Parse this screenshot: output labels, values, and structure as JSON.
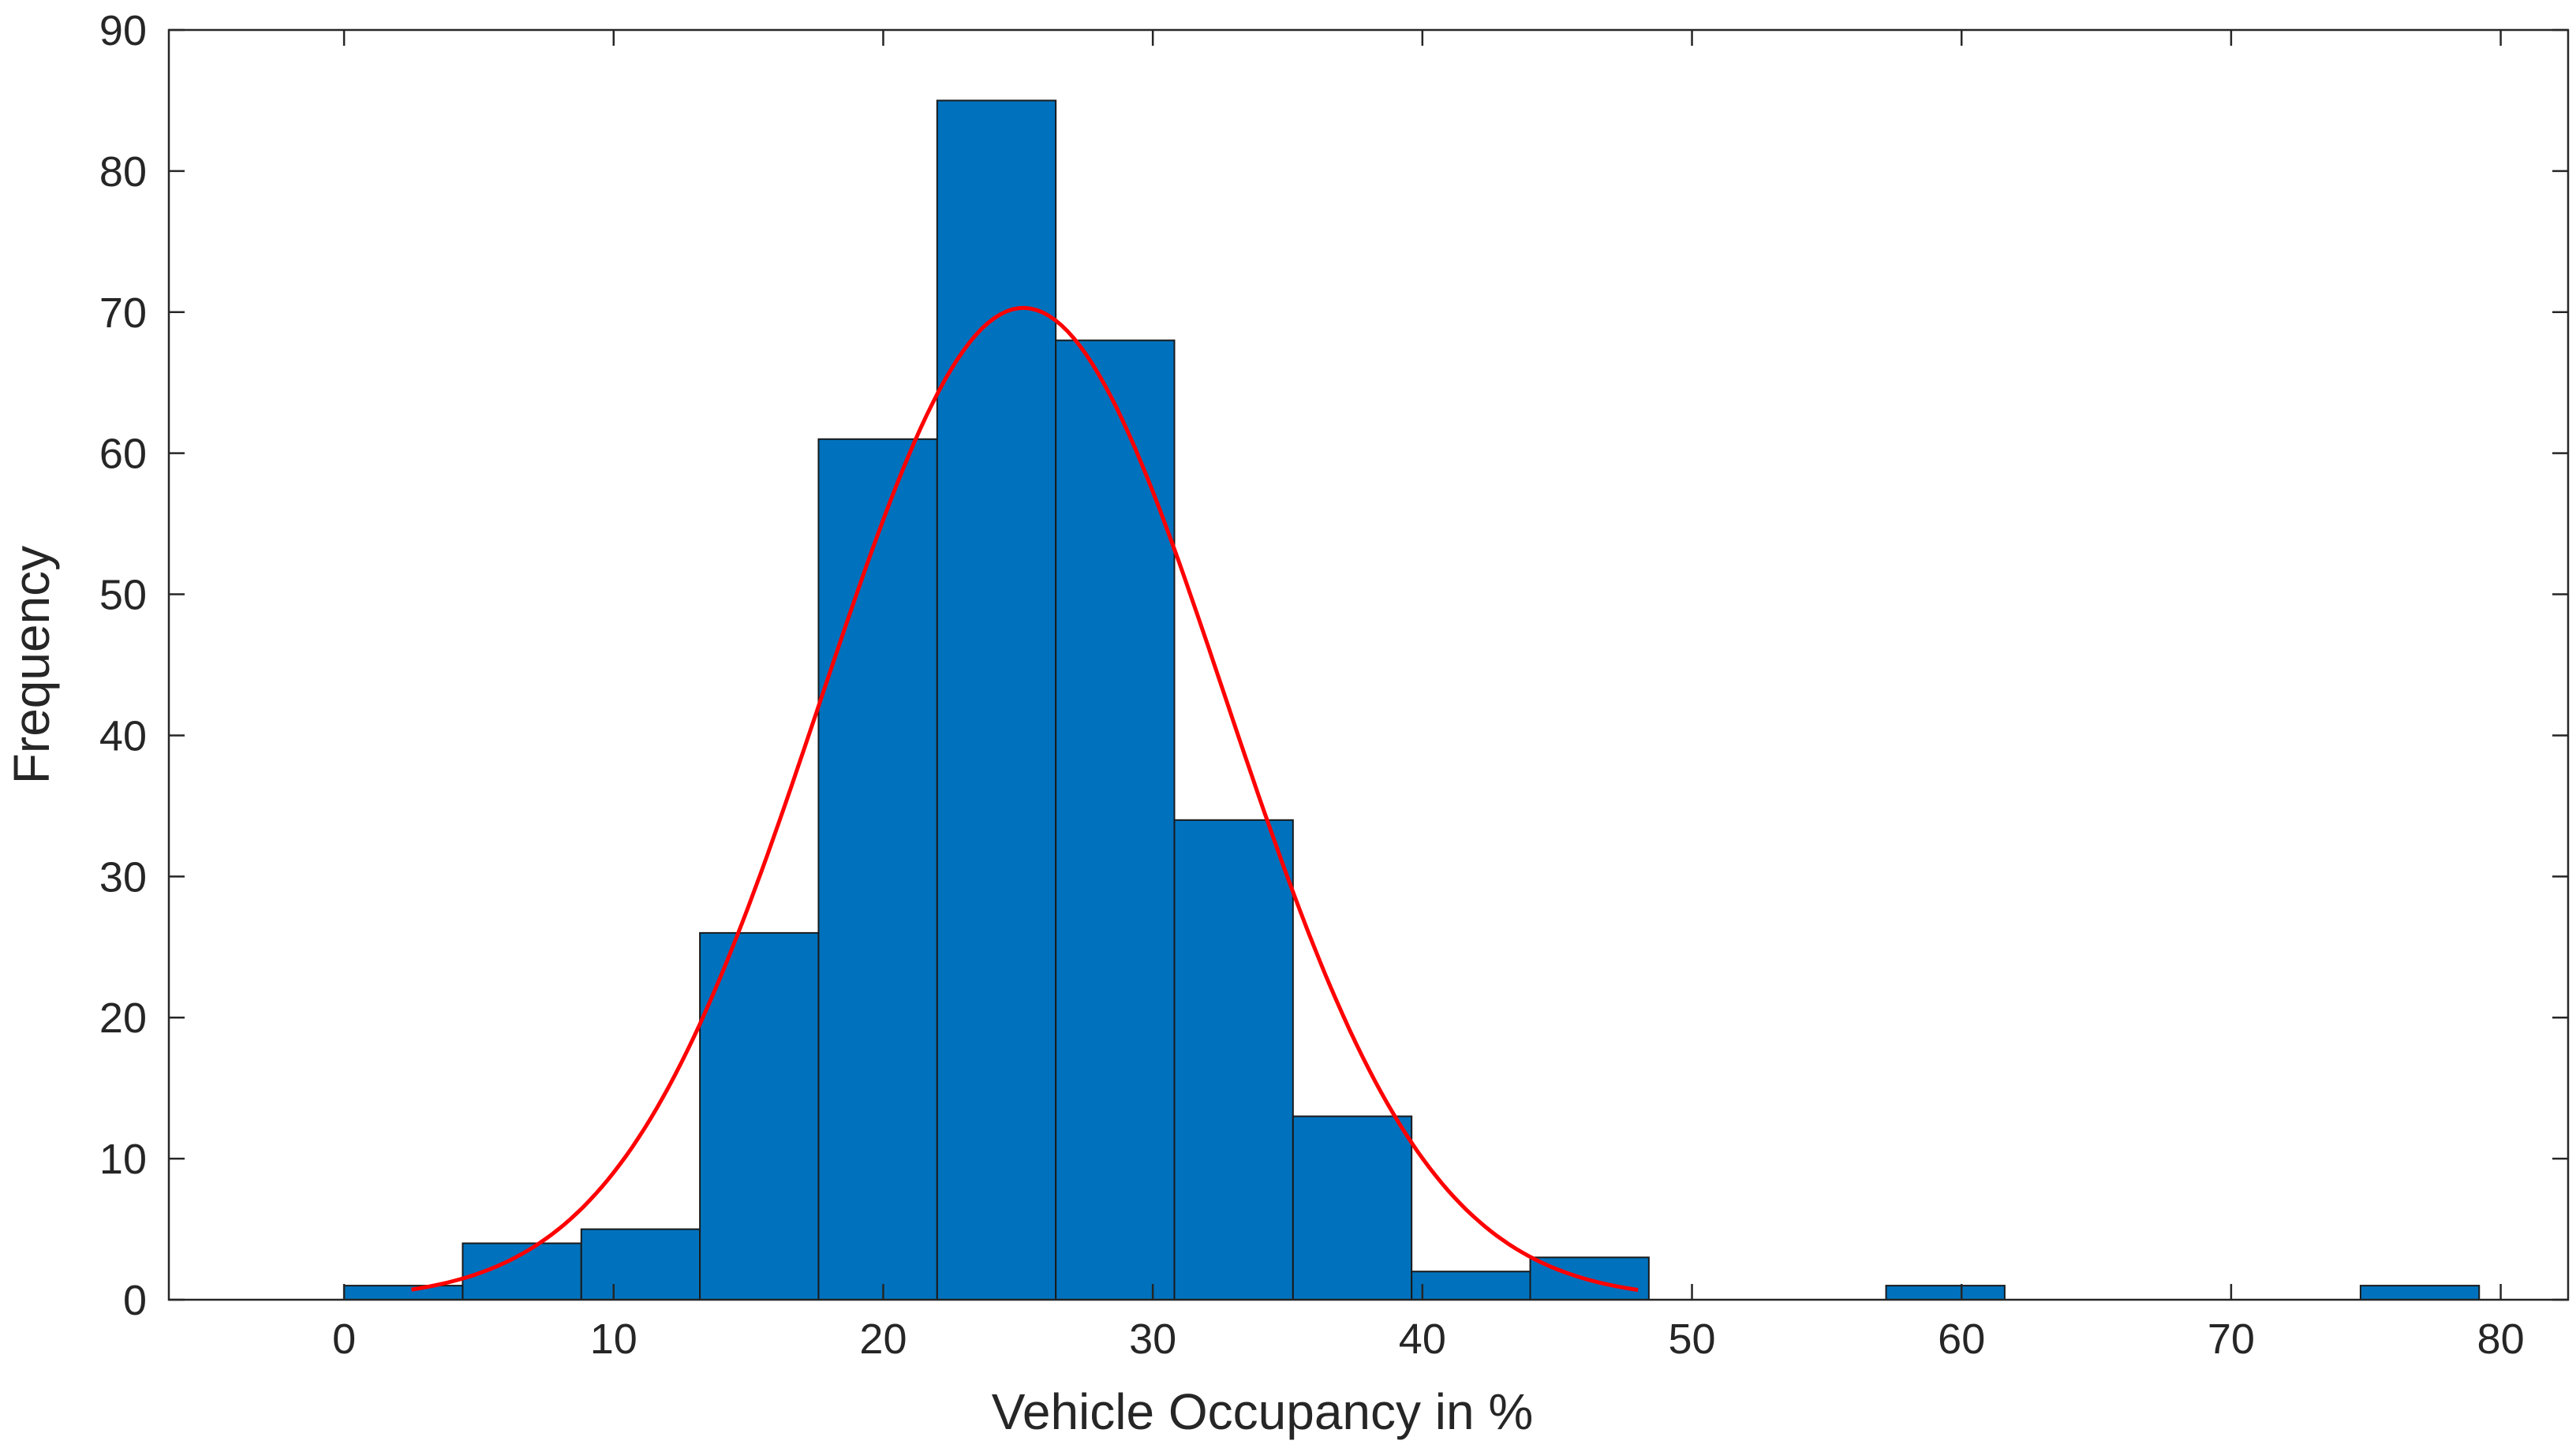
{
  "chart_data": {
    "type": "bar",
    "subtype": "histogram",
    "title": "",
    "xlabel": "Vehicle Occupancy in %",
    "ylabel": "Frequency",
    "xlim": [
      -6.5,
      82.5
    ],
    "ylim": [
      0,
      90
    ],
    "xticks": [
      0,
      10,
      20,
      30,
      40,
      50,
      60,
      70,
      80
    ],
    "yticks": [
      0,
      10,
      20,
      30,
      40,
      50,
      60,
      70,
      80,
      90
    ],
    "grid": false,
    "bins": [
      {
        "x0": 0.0,
        "x1": 4.4,
        "count": 1
      },
      {
        "x0": 4.4,
        "x1": 8.8,
        "count": 4
      },
      {
        "x0": 8.8,
        "x1": 13.2,
        "count": 5
      },
      {
        "x0": 13.2,
        "x1": 17.6,
        "count": 26
      },
      {
        "x0": 17.6,
        "x1": 22.0,
        "count": 61
      },
      {
        "x0": 22.0,
        "x1": 26.4,
        "count": 85
      },
      {
        "x0": 26.4,
        "x1": 30.8,
        "count": 68
      },
      {
        "x0": 30.8,
        "x1": 35.2,
        "count": 34
      },
      {
        "x0": 35.2,
        "x1": 39.6,
        "count": 13
      },
      {
        "x0": 39.6,
        "x1": 44.0,
        "count": 2
      },
      {
        "x0": 44.0,
        "x1": 48.4,
        "count": 3
      },
      {
        "x0": 57.2,
        "x1": 61.6,
        "count": 1
      },
      {
        "x0": 74.8,
        "x1": 79.2,
        "count": 1
      }
    ],
    "fit_curve": {
      "kind": "normal",
      "mean": 25.2,
      "peak": 70.3,
      "sigma": 7.5,
      "x_range": [
        2.5,
        48.0
      ]
    },
    "colors": {
      "bar_fill": "#0072BD",
      "bar_edge": "#1a1a1a",
      "curve": "#FF0000",
      "axis": "#262626"
    }
  }
}
